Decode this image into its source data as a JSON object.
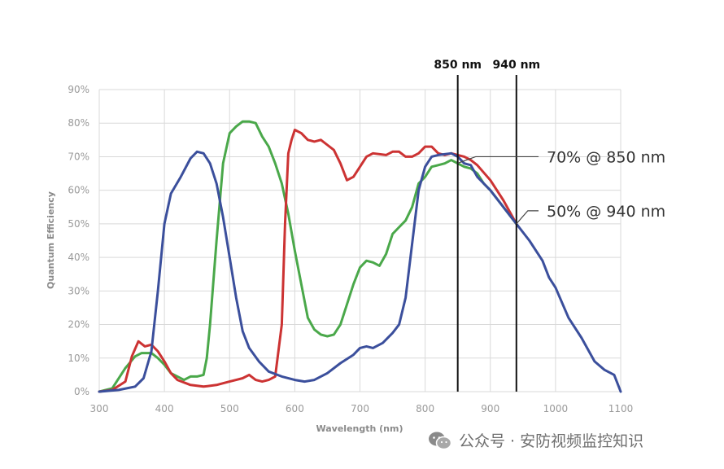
{
  "chart_data": {
    "type": "line",
    "title": "",
    "xlabel": "Wavelength (nm)",
    "ylabel": "Quantum Efficiency",
    "xlim": [
      300,
      1100
    ],
    "ylim": [
      0,
      90
    ],
    "x_ticks": [
      "300",
      "400",
      "500",
      "600",
      "700",
      "800",
      "900",
      "1000",
      "1100"
    ],
    "y_ticks": [
      "0%",
      "10%",
      "20%",
      "30%",
      "40%",
      "50%",
      "60%",
      "70%",
      "80%",
      "90%"
    ],
    "grid": true,
    "legend": "none",
    "markers": [
      {
        "label": "850 nm",
        "x": 850
      },
      {
        "label": "940 nm",
        "x": 940
      }
    ],
    "annotations": [
      {
        "text": "70% @ 850 nm",
        "x": 850,
        "y": 70
      },
      {
        "text": "50% @ 940 nm",
        "x": 940,
        "y": 50
      }
    ],
    "series": [
      {
        "color": "#3b4f9c",
        "x": [
          300,
          330,
          355,
          368,
          380,
          390,
          400,
          410,
          425,
          440,
          450,
          460,
          470,
          480,
          490,
          500,
          510,
          520,
          530,
          545,
          560,
          580,
          600,
          615,
          630,
          650,
          670,
          690,
          700,
          710,
          720,
          735,
          750,
          760,
          770,
          780,
          790,
          800,
          810,
          820,
          840,
          850,
          860,
          870,
          880,
          900,
          920,
          940,
          960,
          980,
          990,
          1000,
          1020,
          1040,
          1060,
          1075,
          1090,
          1100
        ],
        "y": [
          0,
          0.5,
          1.5,
          4,
          12,
          30,
          50,
          59,
          64,
          69.5,
          71.5,
          71,
          68,
          62,
          52,
          40,
          28,
          18,
          13,
          9,
          6,
          4.5,
          3.5,
          3,
          3.5,
          5.5,
          8.5,
          11,
          13,
          13.5,
          13,
          14.5,
          17.5,
          20,
          28,
          44,
          60,
          67,
          70,
          70.5,
          71,
          70,
          68,
          67.5,
          64,
          60,
          55,
          50,
          45,
          39,
          34,
          31,
          22,
          16,
          9,
          6.5,
          5,
          0
        ]
      },
      {
        "color": "#4aa84a",
        "x": [
          300,
          320,
          340,
          355,
          365,
          380,
          390,
          400,
          410,
          420,
          430,
          440,
          450,
          460,
          465,
          470,
          480,
          490,
          500,
          510,
          520,
          530,
          540,
          550,
          560,
          570,
          580,
          590,
          600,
          610,
          620,
          630,
          640,
          650,
          660,
          670,
          680,
          690,
          700,
          710,
          720,
          730,
          740,
          750,
          760,
          770,
          780,
          790,
          800,
          810,
          820,
          830,
          840,
          850,
          860,
          870,
          880,
          890,
          900,
          920,
          940
        ],
        "y": [
          0,
          1,
          7,
          10.5,
          11.5,
          11.5,
          10,
          8,
          5.5,
          4.5,
          3.5,
          4.5,
          4.5,
          5,
          10,
          20,
          45,
          68,
          77,
          79,
          80.5,
          80.5,
          80,
          76,
          73,
          68,
          62,
          53,
          42,
          32,
          22,
          18.5,
          17,
          16.5,
          17,
          20,
          26,
          32,
          37,
          39,
          38.5,
          37.5,
          41,
          47,
          49,
          51,
          55,
          62,
          64,
          67,
          67.5,
          68,
          69,
          68,
          67,
          66.5,
          65,
          62,
          60,
          55,
          50
        ]
      },
      {
        "color": "#cc3333",
        "x": [
          300,
          320,
          340,
          350,
          360,
          370,
          380,
          390,
          400,
          410,
          420,
          440,
          460,
          480,
          490,
          500,
          510,
          520,
          530,
          540,
          550,
          560,
          570,
          580,
          585,
          590,
          595,
          600,
          610,
          620,
          630,
          640,
          650,
          660,
          670,
          680,
          690,
          700,
          710,
          720,
          740,
          750,
          760,
          770,
          780,
          790,
          800,
          810,
          820,
          830,
          840,
          850,
          860,
          870,
          880,
          900,
          920,
          940
        ],
        "y": [
          0,
          0.5,
          3,
          10.5,
          15,
          13.5,
          14,
          12,
          9,
          5.5,
          3.5,
          2,
          1.5,
          2,
          2.5,
          3,
          3.5,
          4,
          5,
          3.5,
          3,
          3.5,
          4.5,
          20,
          50,
          71,
          75,
          78,
          77,
          75,
          74.5,
          75,
          73.5,
          72,
          68,
          63,
          64,
          67,
          70,
          71,
          70.5,
          71.5,
          71.5,
          70,
          70,
          71,
          73,
          73,
          71,
          70.5,
          71,
          70.5,
          70,
          69,
          67.5,
          63,
          57,
          50
        ]
      }
    ]
  },
  "watermark": {
    "icon": "wechat-icon",
    "text": "公众号 · 安防视频监控知识"
  }
}
